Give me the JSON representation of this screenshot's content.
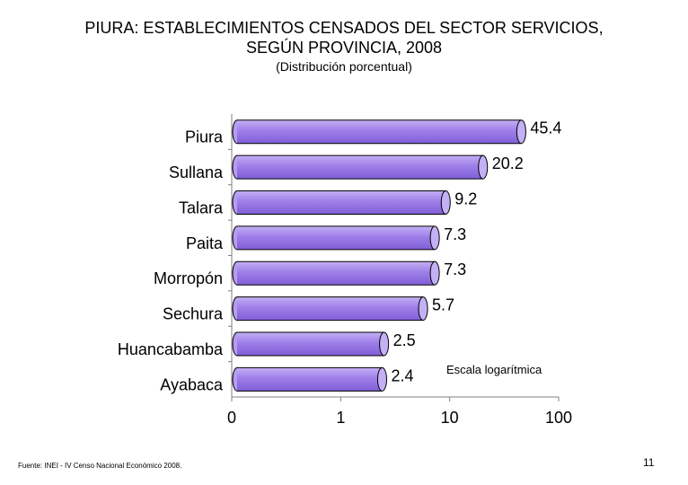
{
  "slide": {
    "title_line1": "PIURA: ESTABLECIMIENTOS CENSADOS DEL SECTOR SERVICIOS,",
    "title_line2": "SEGÚN PROVINCIA, 2008",
    "subtitle": "(Distribución porcentual)",
    "source": "Fuente: INEI - IV Censo Nacional Económico 2008.",
    "page_number": "11"
  },
  "chart_data": {
    "type": "bar",
    "orientation": "horizontal",
    "title": "PIURA: ESTABLECIMIENTOS CENSADOS DEL SECTOR SERVICIOS, SEGÚN PROVINCIA, 2008",
    "subtitle": "(Distribución porcentual)",
    "categories": [
      "Piura",
      "Sullana",
      "Talara",
      "Paita",
      "Morropón",
      "Sechura",
      "Huancabamba",
      "Ayabaca"
    ],
    "values": [
      45.4,
      20.2,
      9.2,
      7.3,
      7.3,
      5.7,
      2.5,
      2.4
    ],
    "value_labels": [
      "45.4",
      "20.2",
      "9.2",
      "7.3",
      "7.3",
      "5.7",
      "2.5",
      "2.4"
    ],
    "x_scale": "log",
    "x_ticks": [
      {
        "value": 0.1,
        "label": "0"
      },
      {
        "value": 1,
        "label": "1"
      },
      {
        "value": 10,
        "label": "10"
      },
      {
        "value": 100,
        "label": "100"
      }
    ],
    "xlim": [
      0.1,
      100
    ],
    "annotation": "Escala logarítmica",
    "bar_color": "#9f7fe9",
    "bar_end_color": "#c4b0f5",
    "grid": false
  }
}
